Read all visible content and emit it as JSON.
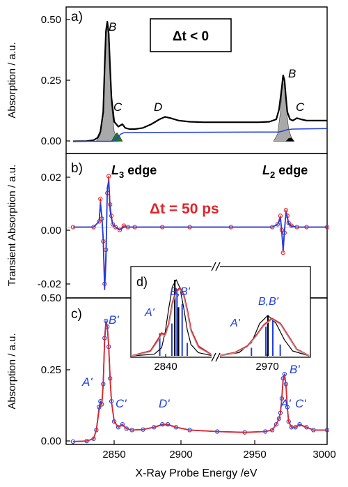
{
  "figure": {
    "xlabel": "X-Ray Probe Energy /eV",
    "x_ticks": [
      "2850",
      "2900",
      "2950",
      "3000"
    ]
  },
  "colors": {
    "black": "#000000",
    "blue": "#1f3fe0",
    "red": "#e0242b",
    "gray_fill": "#a9a9a9",
    "green_fill": "#1e7a1e"
  },
  "chart_data": [
    {
      "panel_label": "a)",
      "type": "line",
      "ylabel": "Absorption / a.u.",
      "ylim": [
        -0.05,
        0.55
      ],
      "xlim": [
        2810,
        3000
      ],
      "y_ticks": [
        "0.00",
        "0.25",
        "0.50"
      ],
      "annotations": {
        "condition": "Δt < 0",
        "peak_B1": "B",
        "peak_C1": "C",
        "peak_D": "D",
        "peak_B2": "B",
        "peak_C2": "C"
      },
      "series": [
        {
          "color": "black",
          "x": [
            2815,
            2825,
            2830,
            2833,
            2835,
            2837,
            2838,
            2839,
            2840,
            2841,
            2842,
            2843,
            2845,
            2848,
            2851,
            2853,
            2856,
            2860,
            2866,
            2872,
            2878,
            2882,
            2886,
            2892,
            2900,
            2910,
            2920,
            2930,
            2940,
            2950,
            2958,
            2963,
            2965,
            2967,
            2968,
            2969,
            2970,
            2971,
            2973,
            2975,
            2978,
            2981,
            2985,
            2990,
            3000
          ],
          "y": [
            0.0,
            0.001,
            0.005,
            0.015,
            0.04,
            0.12,
            0.3,
            0.45,
            0.49,
            0.44,
            0.3,
            0.18,
            0.08,
            0.06,
            0.07,
            0.055,
            0.05,
            0.05,
            0.055,
            0.07,
            0.09,
            0.1,
            0.095,
            0.085,
            0.08,
            0.078,
            0.078,
            0.078,
            0.078,
            0.078,
            0.08,
            0.09,
            0.13,
            0.22,
            0.27,
            0.25,
            0.18,
            0.12,
            0.09,
            0.085,
            0.095,
            0.09,
            0.085,
            0.085,
            0.085
          ]
        },
        {
          "color": "blue",
          "x": [
            2815,
            2840,
            2844,
            2846,
            2848,
            2850,
            2852,
            2860,
            2900,
            2950,
            2965,
            2968,
            2971,
            2975,
            3000
          ],
          "y": [
            0.0,
            0.0,
            0.0,
            0.005,
            0.02,
            0.03,
            0.035,
            0.036,
            0.037,
            0.038,
            0.038,
            0.042,
            0.048,
            0.05,
            0.052
          ]
        }
      ],
      "fills": [
        {
          "color": "gray_fill",
          "x": [
            2832,
            2835,
            2837,
            2838,
            2839,
            2840,
            2841,
            2842,
            2843,
            2845,
            2848
          ],
          "y": [
            0.0,
            0.03,
            0.12,
            0.3,
            0.45,
            0.48,
            0.42,
            0.28,
            0.15,
            0.04,
            0.0
          ]
        },
        {
          "color": "green_fill",
          "x": [
            2843,
            2845,
            2847,
            2849,
            2851
          ],
          "y": [
            0.0,
            0.02,
            0.035,
            0.02,
            0.0
          ]
        },
        {
          "color": "gray_fill",
          "x": [
            2961,
            2964,
            2966,
            2967,
            2968,
            2969,
            2970,
            2971,
            2972,
            2974,
            2976
          ],
          "y": [
            0.0,
            0.03,
            0.12,
            0.2,
            0.26,
            0.24,
            0.17,
            0.1,
            0.05,
            0.015,
            0.0
          ]
        },
        {
          "color": "black",
          "x": [
            2970,
            2972,
            2974,
            2976
          ],
          "y": [
            0.0,
            0.012,
            0.015,
            0.0
          ]
        }
      ]
    },
    {
      "panel_label": "b)",
      "type": "line",
      "ylabel": "Transient Absorption / a.u.",
      "ylim": [
        -0.025,
        0.026
      ],
      "xlim": [
        2810,
        3000
      ],
      "y_ticks": [
        "0.02",
        "0.00",
        "-0.02"
      ],
      "annotations": {
        "edge_L3_main": "L",
        "edge_L3_sub": "3",
        "edge_L3_word": " edge",
        "edge_L2_main": "L",
        "edge_L2_sub": "2",
        "edge_L2_word": " edge",
        "delay": "Δt = 50 ps"
      },
      "series": [
        {
          "color": "red",
          "x": [
            2815,
            2830,
            2834,
            2835,
            2836,
            2837,
            2838,
            2839,
            2840,
            2841,
            2842,
            2843,
            2844,
            2846,
            2849,
            2852,
            2855,
            2860,
            2880,
            2900,
            2930,
            2960,
            2964,
            2966,
            2967,
            2968,
            2969,
            2970,
            2971,
            2972,
            2974,
            2978,
            2985,
            3000
          ],
          "y": [
            0.0,
            0.0,
            0.002,
            0.01,
            0.003,
            -0.005,
            -0.02,
            -0.008,
            0.012,
            0.018,
            0.008,
            0.004,
            0.001,
            0.0,
            -0.001,
            0.0005,
            0.0,
            0.0,
            0.0,
            0.0,
            0.0,
            0.0,
            0.001,
            0.004,
            -0.001,
            -0.009,
            -0.002,
            0.006,
            0.004,
            0.0015,
            0.0005,
            0.0,
            0.0,
            0.0
          ]
        },
        {
          "color": "blue",
          "x": [
            2815,
            2830,
            2834,
            2835,
            2836,
            2837,
            2838,
            2839,
            2840,
            2841,
            2842,
            2843,
            2844,
            2846,
            2849,
            2852,
            2855,
            2860,
            2880,
            2900,
            2930,
            2960,
            2964,
            2966,
            2967,
            2968,
            2969,
            2970,
            2971,
            2972,
            2974,
            2978,
            2985,
            3000
          ],
          "y": [
            0.0,
            0.0,
            0.002,
            0.008,
            0.004,
            -0.004,
            -0.022,
            -0.012,
            0.014,
            0.016,
            0.006,
            0.003,
            0.001,
            0.0,
            -0.001,
            0.0,
            0.0,
            0.0,
            0.0,
            0.0,
            0.0,
            0.0,
            0.001,
            0.003,
            -0.002,
            -0.008,
            -0.001,
            0.005,
            0.0035,
            0.001,
            0.0003,
            0.0,
            0.0,
            0.0
          ]
        }
      ]
    },
    {
      "panel_label": "c)",
      "type": "line",
      "ylabel": "Absorption / a.u.",
      "ylim": [
        -0.01,
        0.5
      ],
      "xlim": [
        2810,
        3000
      ],
      "y_ticks": [
        "0.00",
        "0.25",
        "0.50"
      ],
      "annotations": {
        "peak_A1": "A'",
        "peak_B1": "B'",
        "peak_C1": "C'",
        "peak_D": "D'",
        "peak_A2": "A'",
        "peak_B2": "B'",
        "peak_C2": "C'"
      },
      "series": [
        {
          "color": "blue",
          "x": [
            2815,
            2825,
            2830,
            2832,
            2834,
            2835,
            2836,
            2837,
            2838,
            2839,
            2840,
            2841,
            2842,
            2843,
            2845,
            2848,
            2851,
            2854,
            2858,
            2866,
            2874,
            2880,
            2884,
            2890,
            2900,
            2920,
            2940,
            2955,
            2960,
            2963,
            2965,
            2966,
            2967,
            2968,
            2969,
            2970,
            2971,
            2972,
            2974,
            2977,
            2980,
            2985,
            2990,
            3000
          ],
          "y": [
            0.0,
            0.002,
            0.01,
            0.04,
            0.12,
            0.14,
            0.13,
            0.2,
            0.36,
            0.42,
            0.4,
            0.33,
            0.22,
            0.14,
            0.07,
            0.05,
            0.06,
            0.045,
            0.04,
            0.042,
            0.05,
            0.06,
            0.06,
            0.05,
            0.04,
            0.035,
            0.032,
            0.035,
            0.04,
            0.06,
            0.08,
            0.1,
            0.15,
            0.22,
            0.235,
            0.2,
            0.12,
            0.07,
            0.05,
            0.05,
            0.06,
            0.05,
            0.04,
            0.04
          ]
        },
        {
          "color": "red",
          "x": [
            2815,
            2825,
            2830,
            2832,
            2834,
            2835,
            2836,
            2837,
            2838,
            2839,
            2840,
            2841,
            2842,
            2843,
            2845,
            2848,
            2851,
            2854,
            2858,
            2866,
            2874,
            2880,
            2884,
            2890,
            2900,
            2920,
            2940,
            2955,
            2960,
            2963,
            2965,
            2966,
            2967,
            2968,
            2969,
            2970,
            2971,
            2972,
            2974,
            2977,
            2980,
            2985,
            2990,
            3000
          ],
          "y": [
            0.0,
            0.002,
            0.01,
            0.04,
            0.11,
            0.13,
            0.13,
            0.2,
            0.35,
            0.41,
            0.4,
            0.33,
            0.22,
            0.14,
            0.07,
            0.05,
            0.058,
            0.045,
            0.04,
            0.042,
            0.05,
            0.058,
            0.058,
            0.05,
            0.04,
            0.035,
            0.032,
            0.035,
            0.04,
            0.06,
            0.08,
            0.1,
            0.15,
            0.215,
            0.23,
            0.2,
            0.12,
            0.07,
            0.05,
            0.05,
            0.058,
            0.05,
            0.04,
            0.04
          ]
        }
      ]
    },
    {
      "panel_label": "d)",
      "type": "line",
      "inset": true,
      "x_ticks": [
        "2840",
        "2970"
      ],
      "annotations": {
        "left_A": "A'",
        "left_BB": "B,B'",
        "right_A": "A'",
        "right_BB": "B,B'"
      },
      "left_segment": {
        "xlim": [
          2828,
          2850
        ],
        "ylim": [
          0,
          0.5
        ],
        "series": [
          {
            "color": "black",
            "x": [
              2828,
              2834,
              2836,
              2837,
              2838,
              2839,
              2840,
              2841,
              2842,
              2843,
              2844,
              2846,
              2850
            ],
            "y": [
              0.0,
              0.01,
              0.05,
              0.15,
              0.3,
              0.43,
              0.47,
              0.42,
              0.3,
              0.16,
              0.07,
              0.02,
              0.0
            ]
          },
          {
            "color": "red",
            "x": [
              2828,
              2833,
              2835,
              2836,
              2837,
              2838,
              2839,
              2840,
              2841,
              2842,
              2843,
              2844,
              2846,
              2850
            ],
            "y": [
              0.0,
              0.03,
              0.1,
              0.14,
              0.13,
              0.2,
              0.33,
              0.4,
              0.42,
              0.38,
              0.28,
              0.16,
              0.06,
              0.0
            ]
          },
          {
            "color": "gray_fill",
            "x": [
              2828,
              2833,
              2835,
              2836,
              2837,
              2838,
              2839,
              2840,
              2841,
              2842,
              2843,
              2844,
              2846,
              2850
            ],
            "y": [
              0.0,
              0.025,
              0.09,
              0.13,
              0.125,
              0.19,
              0.32,
              0.39,
              0.41,
              0.37,
              0.27,
              0.15,
              0.05,
              0.0
            ]
          }
        ],
        "sticks_black": [
          {
            "x": 2839.6,
            "y": 0.47
          },
          {
            "x": 2840.6,
            "y": 0.3
          }
        ],
        "sticks_blue": [
          {
            "x": 2835.5,
            "y": 0.14
          },
          {
            "x": 2838.8,
            "y": 0.2
          },
          {
            "x": 2840.2,
            "y": 0.4
          },
          {
            "x": 2841.6,
            "y": 0.32
          },
          {
            "x": 2843,
            "y": 0.08
          }
        ]
      },
      "right_segment": {
        "xlim": [
          2958,
          2980
        ],
        "ylim": [
          0,
          0.5
        ],
        "series": [
          {
            "color": "black",
            "x": [
              2958,
              2963,
              2966,
              2968,
              2970,
              2972,
              2974,
              2976,
              2980
            ],
            "y": [
              0.0,
              0.02,
              0.08,
              0.2,
              0.25,
              0.2,
              0.1,
              0.03,
              0.0
            ]
          },
          {
            "color": "red",
            "x": [
              2958,
              2962,
              2965,
              2967,
              2969,
              2971,
              2973,
              2975,
              2977,
              2980
            ],
            "y": [
              0.0,
              0.02,
              0.06,
              0.12,
              0.19,
              0.23,
              0.2,
              0.12,
              0.04,
              0.0
            ]
          },
          {
            "color": "gray_fill",
            "x": [
              2958,
              2962,
              2965,
              2967,
              2969,
              2971,
              2973,
              2975,
              2977,
              2980
            ],
            "y": [
              0.0,
              0.018,
              0.055,
              0.115,
              0.185,
              0.225,
              0.195,
              0.115,
              0.038,
              0.0
            ]
          }
        ],
        "sticks_black": [
          {
            "x": 2970,
            "y": 0.25
          }
        ],
        "sticks_blue": [
          {
            "x": 2966,
            "y": 0.05
          },
          {
            "x": 2969.5,
            "y": 0.18
          },
          {
            "x": 2971.2,
            "y": 0.22
          },
          {
            "x": 2973,
            "y": 0.07
          }
        ]
      }
    }
  ]
}
